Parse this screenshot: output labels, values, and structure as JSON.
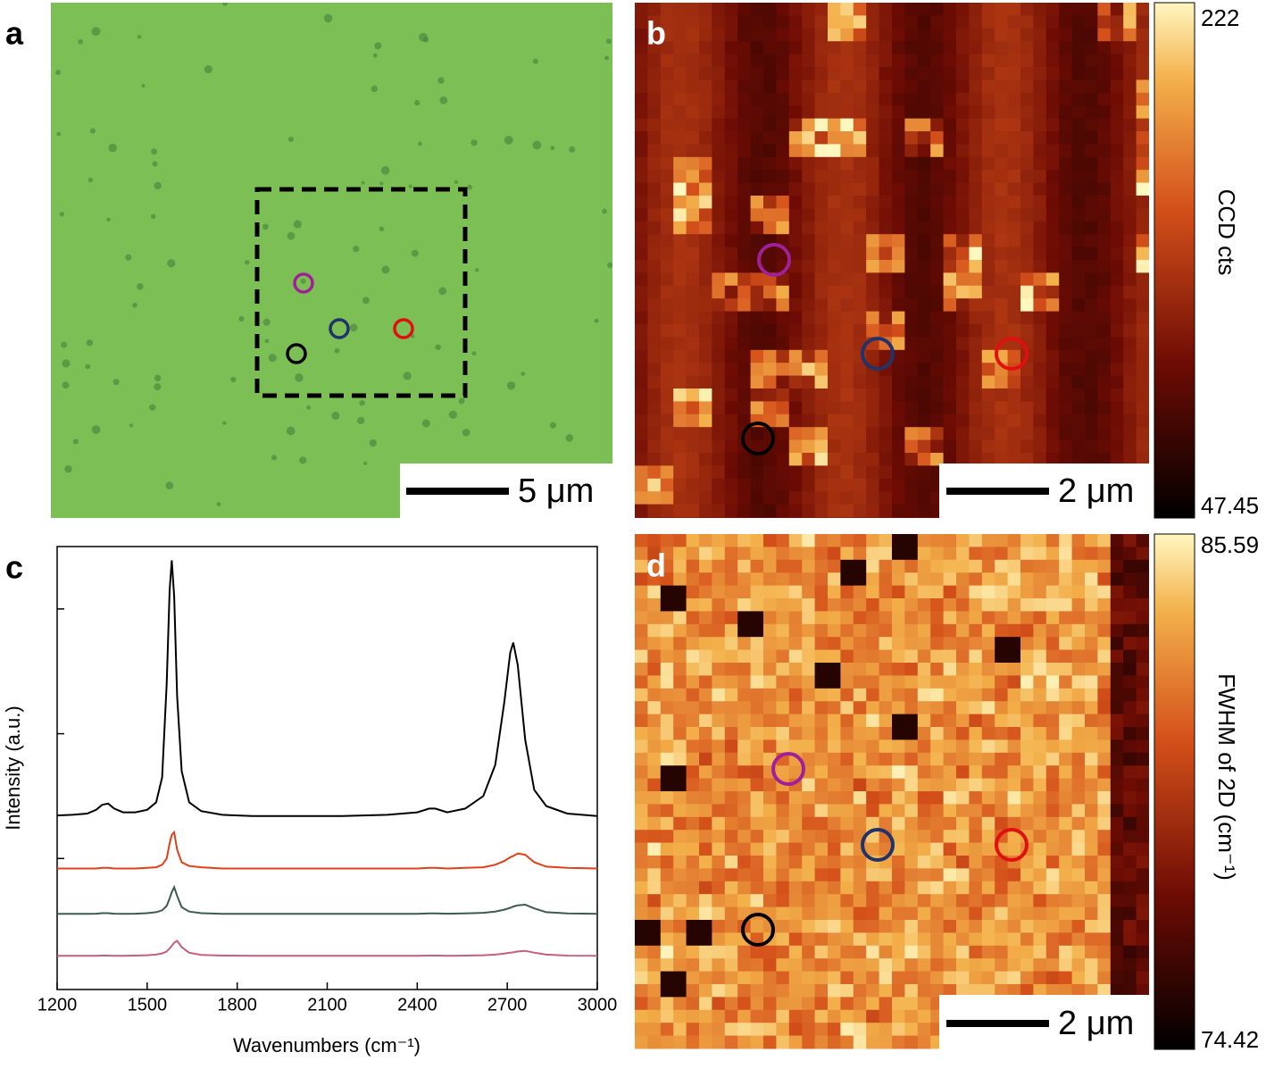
{
  "panels": {
    "a": {
      "label": "a",
      "scale_bar": "5 μm"
    },
    "b": {
      "label": "b",
      "scale_bar": "2 μm",
      "colorbar": {
        "label": "CCD cts",
        "max": 222,
        "min": 47.45
      }
    },
    "c": {
      "label": "c"
    },
    "d": {
      "label": "d",
      "scale_bar": "2 μm",
      "colorbar": {
        "label": "FWHM of 2D (cm⁻¹)",
        "max": 85.59,
        "min": 74.42
      }
    }
  },
  "chart_data": {
    "type": "line",
    "x_label": "Wavenumbers (cm⁻¹)",
    "y_label": "Intensity (a.u.)",
    "x": [
      1200,
      1250,
      1300,
      1330,
      1350,
      1370,
      1390,
      1420,
      1460,
      1500,
      1530,
      1550,
      1565,
      1575,
      1582,
      1590,
      1600,
      1615,
      1640,
      1680,
      1750,
      1850,
      2000,
      2150,
      2300,
      2400,
      2440,
      2460,
      2500,
      2560,
      2620,
      2660,
      2690,
      2710,
      2720,
      2735,
      2760,
      2790,
      2830,
      2900,
      3000
    ],
    "series": [
      {
        "color": "#000000",
        "values": [
          1.345,
          1.35,
          1.36,
          1.39,
          1.43,
          1.44,
          1.4,
          1.37,
          1.37,
          1.39,
          1.45,
          1.65,
          2.4,
          3.15,
          3.39,
          3.1,
          2.3,
          1.7,
          1.45,
          1.38,
          1.35,
          1.34,
          1.34,
          1.34,
          1.35,
          1.37,
          1.4,
          1.4,
          1.37,
          1.4,
          1.5,
          1.75,
          2.25,
          2.65,
          2.73,
          2.55,
          1.95,
          1.55,
          1.42,
          1.36,
          1.34
        ]
      },
      {
        "color": "#e0401a",
        "values": [
          0.92,
          0.92,
          0.92,
          0.92,
          0.925,
          0.925,
          0.92,
          0.92,
          0.92,
          0.925,
          0.93,
          0.95,
          1.0,
          1.12,
          1.19,
          1.21,
          1.07,
          0.97,
          0.94,
          0.93,
          0.92,
          0.92,
          0.92,
          0.92,
          0.92,
          0.92,
          0.925,
          0.925,
          0.92,
          0.925,
          0.93,
          0.95,
          0.98,
          1.01,
          1.02,
          1.04,
          1.03,
          0.97,
          0.935,
          0.925,
          0.92
        ]
      },
      {
        "color": "#3d5a52",
        "values": [
          0.556,
          0.556,
          0.556,
          0.558,
          0.562,
          0.562,
          0.558,
          0.556,
          0.558,
          0.562,
          0.57,
          0.585,
          0.62,
          0.68,
          0.73,
          0.77,
          0.7,
          0.61,
          0.575,
          0.562,
          0.556,
          0.556,
          0.556,
          0.556,
          0.556,
          0.556,
          0.56,
          0.56,
          0.558,
          0.56,
          0.565,
          0.575,
          0.59,
          0.605,
          0.615,
          0.625,
          0.63,
          0.6,
          0.57,
          0.56,
          0.556
        ]
      },
      {
        "color": "#c4607c",
        "values": [
          0.22,
          0.22,
          0.22,
          0.22,
          0.222,
          0.222,
          0.22,
          0.22,
          0.222,
          0.225,
          0.23,
          0.24,
          0.255,
          0.28,
          0.3,
          0.325,
          0.34,
          0.29,
          0.245,
          0.228,
          0.222,
          0.22,
          0.22,
          0.22,
          0.22,
          0.22,
          0.222,
          0.222,
          0.22,
          0.222,
          0.225,
          0.23,
          0.238,
          0.245,
          0.248,
          0.255,
          0.26,
          0.245,
          0.23,
          0.222,
          0.22
        ]
      }
    ],
    "xlim": [
      1200,
      3000
    ],
    "xticks": [
      1200,
      1500,
      1800,
      2100,
      2400,
      2700,
      3000
    ],
    "ylim": [
      -0.05,
      3.5
    ],
    "yticks": [
      1,
      2,
      3
    ]
  }
}
